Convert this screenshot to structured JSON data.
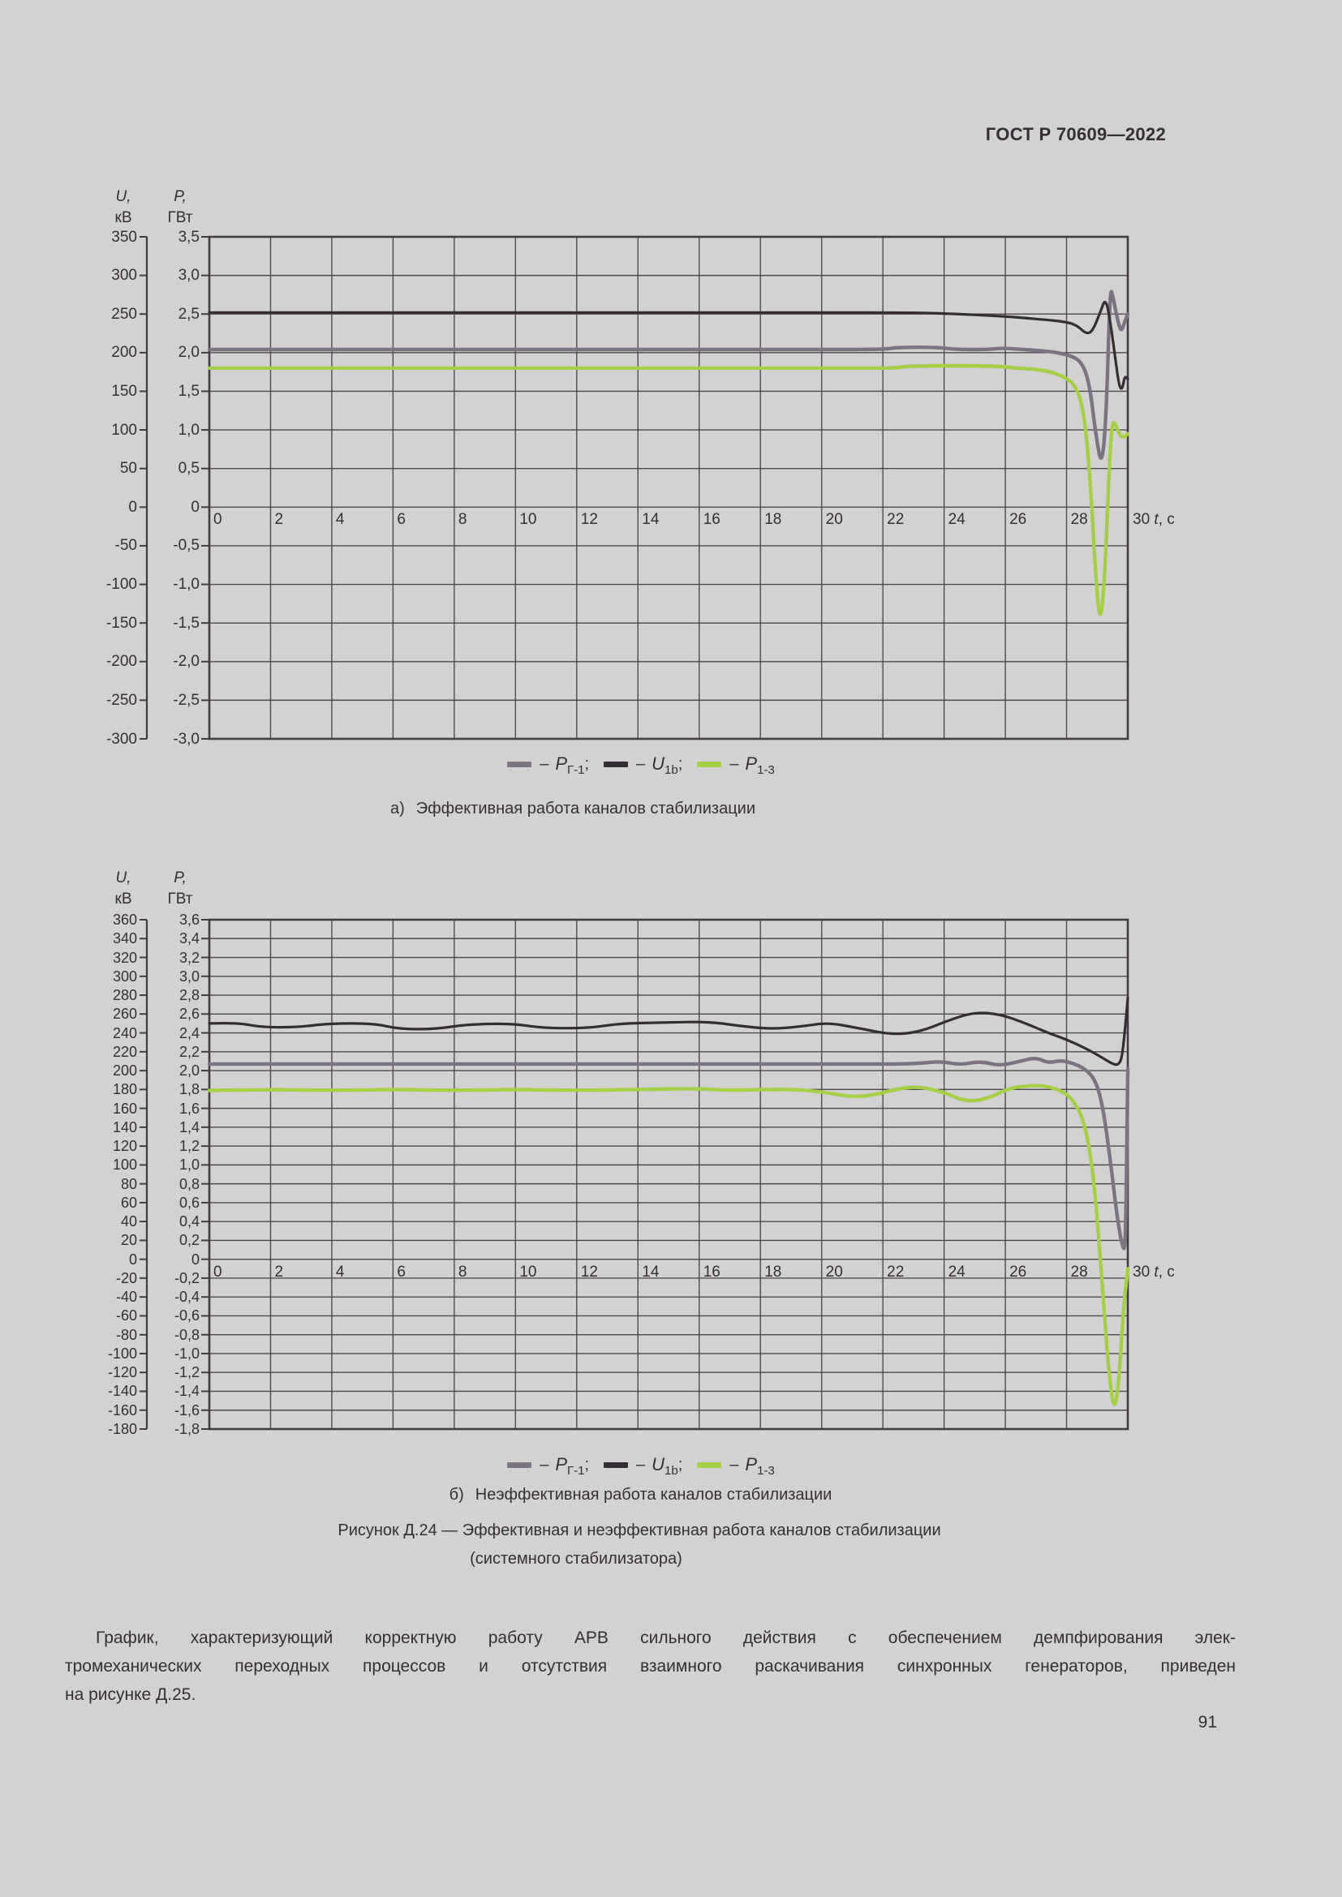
{
  "page": {
    "header_title": "ГОСТ Р 70609—2022",
    "page_number": "91",
    "figure_caption": {
      "line1": "Рисунок Д.24 — Эффективная и неэффективная работа каналов стабилизации",
      "line2": "(системного стабилизатора)"
    },
    "paragraph_lines": [
      "График, характеризующий корректную работу АРВ сильного действия с обеспечением демпфирования элек-",
      "тромеханических переходных процессов и отсутствия взаимного раскачивания синхронных генераторов, приведен",
      "на рисунке Д.25."
    ]
  },
  "colors": {
    "background": "#d2d2d2",
    "ink": "#362e35",
    "grid": "#4f484d",
    "frame": "#433c42",
    "series_gray": "#7b7380",
    "series_black": "#342d33",
    "series_green": "#a5cf46"
  },
  "legend": {
    "items": [
      {
        "swatch": "series_gray",
        "dash": "–",
        "main": "P",
        "sub": "Г-1",
        "suffix": ";"
      },
      {
        "swatch": "series_black",
        "dash": "–",
        "main": "U",
        "sub": "1b",
        "suffix": ";"
      },
      {
        "swatch": "series_green",
        "dash": "–",
        "main": "P",
        "sub": "1-3",
        "suffix": ""
      }
    ]
  },
  "chart_data": [
    {
      "id": "a",
      "type": "line",
      "caption": {
        "prefix": "а)",
        "text": "Эффективная работа каналов стабилизации"
      },
      "x_axis": {
        "min": 0,
        "max": 30,
        "tick_step": 2,
        "tick_labels": [
          "0",
          "2",
          "4",
          "6",
          "8",
          "10",
          "12",
          "14",
          "16",
          "18",
          "20",
          "22",
          "24",
          "26",
          "28"
        ],
        "end_tick_label": "30",
        "unit_italic": "t",
        "unit_rest": ", с"
      },
      "u_axis": {
        "title_line1": "U,",
        "title_line2": "кВ",
        "min": -300,
        "max": 350,
        "step": 50,
        "labels": [
          "350",
          "300",
          "250",
          "200",
          "150",
          "100",
          "50",
          "0",
          "-50",
          "-100",
          "-150",
          "-200",
          "-250",
          "-300"
        ]
      },
      "p_axis": {
        "title_line1": "P,",
        "title_line2": "ГВт",
        "min": -3.0,
        "max": 3.5,
        "step": 0.5,
        "labels": [
          "3,5",
          "3,0",
          "2,5",
          "2,0",
          "1,5",
          "1,0",
          "0,5",
          "0",
          "-0,5",
          "-1,0",
          "-1,5",
          "-2,0",
          "-2,5",
          "-3,0"
        ]
      },
      "grid": true,
      "series": [
        {
          "name": "P_Г-1",
          "axis": "P",
          "color_key": "series_gray",
          "points": [
            [
              0,
              2.04
            ],
            [
              4,
              2.04
            ],
            [
              8,
              2.04
            ],
            [
              12,
              2.04
            ],
            [
              16,
              2.04
            ],
            [
              20,
              2.04
            ],
            [
              22,
              2.04
            ],
            [
              22.5,
              2.07
            ],
            [
              23.8,
              2.07
            ],
            [
              24.4,
              2.04
            ],
            [
              25.4,
              2.04
            ],
            [
              25.9,
              2.06
            ],
            [
              26.6,
              2.04
            ],
            [
              27.4,
              2.02
            ],
            [
              28.1,
              1.97
            ],
            [
              28.5,
              1.88
            ],
            [
              28.75,
              1.6
            ],
            [
              28.95,
              0.95
            ],
            [
              29.15,
              0.5
            ],
            [
              29.3,
              1.2
            ],
            [
              29.42,
              2.85
            ],
            [
              29.52,
              2.72
            ],
            [
              29.65,
              2.45
            ],
            [
              29.78,
              2.26
            ],
            [
              29.9,
              2.4
            ],
            [
              30,
              2.5
            ]
          ]
        },
        {
          "name": "U_1b",
          "axis": "U",
          "color_key": "series_black",
          "points": [
            [
              0,
              252
            ],
            [
              4,
              252
            ],
            [
              8,
              252
            ],
            [
              12,
              252
            ],
            [
              16,
              252
            ],
            [
              20,
              252
            ],
            [
              23,
              252
            ],
            [
              24.5,
              250
            ],
            [
              26,
              247
            ],
            [
              27.2,
              243
            ],
            [
              28,
              240
            ],
            [
              28.35,
              235
            ],
            [
              28.65,
              224
            ],
            [
              28.85,
              228
            ],
            [
              29.1,
              252
            ],
            [
              29.28,
              272
            ],
            [
              29.45,
              235
            ],
            [
              29.6,
              190
            ],
            [
              29.72,
              156
            ],
            [
              29.82,
              152
            ],
            [
              29.9,
              170
            ],
            [
              30,
              166
            ]
          ]
        },
        {
          "name": "P_1-3",
          "axis": "P",
          "color_key": "series_green",
          "points": [
            [
              0,
              1.8
            ],
            [
              3,
              1.8
            ],
            [
              6,
              1.8
            ],
            [
              9,
              1.8
            ],
            [
              12,
              1.8
            ],
            [
              15,
              1.8
            ],
            [
              18,
              1.8
            ],
            [
              21,
              1.8
            ],
            [
              22.4,
              1.8
            ],
            [
              22.9,
              1.83
            ],
            [
              25.7,
              1.83
            ],
            [
              26.3,
              1.8
            ],
            [
              27.2,
              1.78
            ],
            [
              27.9,
              1.7
            ],
            [
              28.35,
              1.55
            ],
            [
              28.6,
              1.15
            ],
            [
              28.8,
              0.2
            ],
            [
              28.95,
              -0.9
            ],
            [
              29.1,
              -1.55
            ],
            [
              29.25,
              -0.9
            ],
            [
              29.4,
              0.6
            ],
            [
              29.5,
              1.13
            ],
            [
              29.62,
              1.05
            ],
            [
              29.75,
              0.92
            ],
            [
              29.88,
              0.9
            ],
            [
              30,
              0.95
            ]
          ]
        }
      ]
    },
    {
      "id": "b",
      "type": "line",
      "caption": {
        "prefix": "б)",
        "text": "Неэффективная работа каналов стабилизации"
      },
      "x_axis": {
        "min": 0,
        "max": 30,
        "tick_step": 2,
        "tick_labels": [
          "0",
          "2",
          "4",
          "6",
          "8",
          "10",
          "12",
          "14",
          "16",
          "18",
          "20",
          "22",
          "24",
          "26",
          "28"
        ],
        "end_tick_label": "30",
        "unit_italic": "t",
        "unit_rest": ", с"
      },
      "u_axis": {
        "title_line1": "U,",
        "title_line2": "кВ",
        "min": -180,
        "max": 360,
        "step": 20,
        "labels": [
          "360",
          "340",
          "320",
          "300",
          "280",
          "260",
          "240",
          "220",
          "200",
          "180",
          "160",
          "140",
          "120",
          "100",
          "80",
          "60",
          "40",
          "20",
          "0",
          "-20",
          "-40",
          "-60",
          "-80",
          "-100",
          "-120",
          "-140",
          "-160",
          "-180"
        ]
      },
      "p_axis": {
        "title_line1": "P,",
        "title_line2": "ГВт",
        "min": -1.8,
        "max": 3.6,
        "step": 0.2,
        "labels": [
          "3,6",
          "3,4",
          "3,2",
          "3,0",
          "2,8",
          "2,6",
          "2,4",
          "2,2",
          "2,0",
          "1,8",
          "1,6",
          "1,4",
          "1,2",
          "1,0",
          "0,8",
          "0,6",
          "0,4",
          "0,2",
          "0",
          "-0,2",
          "-0,4",
          "-0,6",
          "-0,8",
          "-1,0",
          "-1,2",
          "-1,4",
          "-1,6",
          "-1,8"
        ]
      },
      "grid": true,
      "series": [
        {
          "name": "P_Г-1",
          "axis": "P",
          "color_key": "series_gray",
          "points": [
            [
              0,
              2.07
            ],
            [
              3,
              2.07
            ],
            [
              6,
              2.07
            ],
            [
              9,
              2.07
            ],
            [
              12,
              2.07
            ],
            [
              15,
              2.07
            ],
            [
              18,
              2.07
            ],
            [
              21,
              2.07
            ],
            [
              23,
              2.07
            ],
            [
              23.9,
              2.1
            ],
            [
              24.5,
              2.06
            ],
            [
              25.2,
              2.1
            ],
            [
              25.8,
              2.05
            ],
            [
              26.5,
              2.1
            ],
            [
              27.0,
              2.14
            ],
            [
              27.4,
              2.08
            ],
            [
              27.8,
              2.11
            ],
            [
              28.2,
              2.08
            ],
            [
              28.6,
              2.02
            ],
            [
              28.95,
              1.9
            ],
            [
              29.2,
              1.6
            ],
            [
              29.45,
              1.0
            ],
            [
              29.65,
              0.45
            ],
            [
              29.82,
              0.13
            ],
            [
              29.92,
              0.1
            ],
            [
              29.97,
              1.2
            ],
            [
              30,
              2.02
            ]
          ]
        },
        {
          "name": "U_1b",
          "axis": "U",
          "color_key": "series_black",
          "points": [
            [
              0,
              250
            ],
            [
              0.9,
              251
            ],
            [
              1.7,
              246
            ],
            [
              2.9,
              246
            ],
            [
              3.9,
              250
            ],
            [
              5.4,
              250
            ],
            [
              6.2,
              244
            ],
            [
              7.4,
              244
            ],
            [
              8.4,
              249
            ],
            [
              9.9,
              250
            ],
            [
              10.9,
              245
            ],
            [
              12.4,
              245
            ],
            [
              13.4,
              250
            ],
            [
              14.9,
              251
            ],
            [
              16.3,
              252
            ],
            [
              17.4,
              247
            ],
            [
              18.4,
              244
            ],
            [
              19.4,
              247
            ],
            [
              20.2,
              251
            ],
            [
              21.2,
              245
            ],
            [
              22.3,
              238
            ],
            [
              23.2,
              241
            ],
            [
              24.2,
              254
            ],
            [
              25.0,
              262
            ],
            [
              25.8,
              260
            ],
            [
              26.6,
              251
            ],
            [
              27.4,
              240
            ],
            [
              28.0,
              233
            ],
            [
              28.6,
              224
            ],
            [
              29.1,
              215
            ],
            [
              29.5,
              207
            ],
            [
              29.68,
              206
            ],
            [
              29.8,
              212
            ],
            [
              29.9,
              240
            ],
            [
              30,
              277
            ]
          ]
        },
        {
          "name": "P_1-3",
          "axis": "P",
          "color_key": "series_green",
          "points": [
            [
              0,
              1.79
            ],
            [
              2,
              1.8
            ],
            [
              4,
              1.79
            ],
            [
              6,
              1.8
            ],
            [
              8,
              1.79
            ],
            [
              10,
              1.8
            ],
            [
              12,
              1.79
            ],
            [
              14,
              1.8
            ],
            [
              16,
              1.81
            ],
            [
              17,
              1.79
            ],
            [
              18,
              1.8
            ],
            [
              19.3,
              1.8
            ],
            [
              20.3,
              1.76
            ],
            [
              21.0,
              1.72
            ],
            [
              21.7,
              1.74
            ],
            [
              22.5,
              1.81
            ],
            [
              23.2,
              1.83
            ],
            [
              24.0,
              1.77
            ],
            [
              24.7,
              1.67
            ],
            [
              25.4,
              1.7
            ],
            [
              26.1,
              1.81
            ],
            [
              26.7,
              1.84
            ],
            [
              27.3,
              1.84
            ],
            [
              27.8,
              1.79
            ],
            [
              28.2,
              1.7
            ],
            [
              28.6,
              1.45
            ],
            [
              28.9,
              0.85
            ],
            [
              29.15,
              -0.2
            ],
            [
              29.38,
              -1.2
            ],
            [
              29.55,
              -1.62
            ],
            [
              29.7,
              -1.35
            ],
            [
              29.85,
              -0.55
            ],
            [
              30,
              -0.1
            ]
          ]
        }
      ]
    }
  ]
}
